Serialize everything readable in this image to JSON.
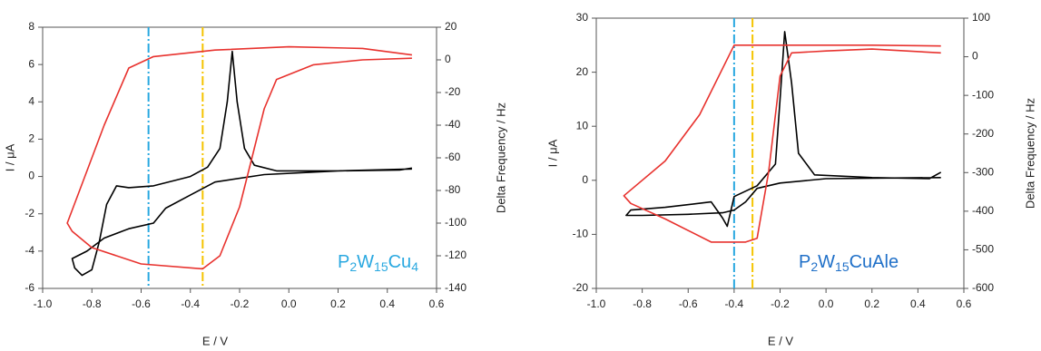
{
  "chart_data": [
    {
      "type": "line",
      "xlabel": "E / V",
      "ylabel": "I / μA",
      "y2label": "Delta Frequency / Hz",
      "annotation": [
        "P",
        "2",
        "W",
        "15",
        "Cu",
        "4"
      ],
      "annotation_color": "#29a8e0",
      "xlim": [
        -1.0,
        0.6
      ],
      "xticks": [
        {
          "value": -1.0,
          "label": "-1.0"
        },
        -0.8,
        -0.6,
        -0.4,
        -0.2,
        {
          "value": 0,
          "label": "0.0"
        },
        0.2,
        0.4,
        0.6
      ],
      "ylim": [
        -6,
        8
      ],
      "yticks": [
        -6,
        -4,
        -2,
        0,
        2,
        4,
        6,
        8
      ],
      "y2lim": [
        -140,
        20
      ],
      "y2ticks": [
        -140,
        -120,
        -100,
        -80,
        -60,
        -40,
        -20,
        0,
        20
      ],
      "vlines": [
        {
          "x": -0.57,
          "color": "#29a8e0"
        },
        {
          "x": -0.35,
          "color": "#f5c400"
        }
      ],
      "series": [
        {
          "color": "#000000",
          "axis": "y",
          "x": [
            0.5,
            0.2,
            -0.1,
            -0.3,
            -0.4,
            -0.5,
            -0.55,
            -0.65,
            -0.75,
            -0.82,
            -0.88,
            -0.87,
            -0.84,
            -0.8,
            -0.77,
            -0.74,
            -0.7,
            -0.65,
            -0.55,
            -0.4,
            -0.33,
            -0.28,
            -0.25,
            -0.23,
            -0.21,
            -0.18,
            -0.14,
            -0.05,
            0.2,
            0.45,
            0.5
          ],
          "values": [
            0.4,
            0.3,
            0.1,
            -0.3,
            -1.0,
            -1.7,
            -2.5,
            -2.8,
            -3.3,
            -4.0,
            -4.4,
            -4.9,
            -5.3,
            -5.0,
            -3.5,
            -1.5,
            -0.5,
            -0.6,
            -0.5,
            0.0,
            0.5,
            1.5,
            4.0,
            6.7,
            4.0,
            1.5,
            0.6,
            0.3,
            0.3,
            0.35,
            0.45
          ]
        },
        {
          "color": "#e8322e",
          "axis": "y2",
          "x": [
            0.5,
            0.3,
            0.0,
            -0.3,
            -0.55,
            -0.65,
            -0.75,
            -0.85,
            -0.9,
            -0.88,
            -0.8,
            -0.6,
            -0.35,
            -0.28,
            -0.2,
            -0.15,
            -0.1,
            -0.05,
            0.1,
            0.3,
            0.5
          ],
          "values": [
            3,
            7,
            8,
            6,
            2,
            -5,
            -40,
            -80,
            -100,
            -105,
            -115,
            -125,
            -128,
            -120,
            -90,
            -60,
            -30,
            -12,
            -3,
            0,
            1
          ]
        }
      ]
    },
    {
      "type": "line",
      "xlabel": "E / V",
      "ylabel": "I / μA",
      "y2label": "Delta Frequency / Hz",
      "annotation": [
        "P",
        "2",
        "W",
        "15",
        "CuAle"
      ],
      "annotation_color": "#2070c8",
      "xlim": [
        -1.0,
        0.6
      ],
      "xticks": [
        {
          "value": -1.0,
          "label": "-1.0"
        },
        -0.8,
        -0.6,
        -0.4,
        -0.2,
        {
          "value": 0,
          "label": "0.0"
        },
        0.2,
        0.4,
        0.6
      ],
      "ylim": [
        -20,
        30
      ],
      "yticks": [
        -20,
        -10,
        0,
        10,
        20,
        30
      ],
      "y2lim": [
        -600,
        100
      ],
      "y2ticks": [
        -600,
        -500,
        -400,
        -300,
        -200,
        -100,
        0,
        100
      ],
      "vlines": [
        {
          "x": -0.4,
          "color": "#29a8e0"
        },
        {
          "x": -0.32,
          "color": "#f5c400"
        }
      ],
      "series": [
        {
          "color": "#000000",
          "axis": "y",
          "x": [
            0.5,
            0.0,
            -0.2,
            -0.3,
            -0.35,
            -0.4,
            -0.45,
            -0.6,
            -0.8,
            -0.87,
            -0.85,
            -0.7,
            -0.5,
            -0.45,
            -0.43,
            -0.4,
            -0.3,
            -0.22,
            -0.2,
            -0.18,
            -0.15,
            -0.12,
            -0.05,
            0.2,
            0.45,
            0.5
          ],
          "values": [
            0.5,
            0.3,
            -0.5,
            -1.5,
            -4,
            -5.5,
            -6,
            -6.3,
            -6.5,
            -6.5,
            -5.5,
            -5,
            -4,
            -7,
            -8.5,
            -3,
            -1,
            3,
            15,
            27.5,
            18,
            5,
            1,
            0.5,
            0.3,
            1.5
          ]
        },
        {
          "color": "#e8322e",
          "axis": "y2",
          "x": [
            0.5,
            0.2,
            -0.4,
            -0.55,
            -0.7,
            -0.88,
            -0.85,
            -0.7,
            -0.5,
            -0.35,
            -0.3,
            -0.25,
            -0.2,
            -0.15,
            0.0,
            0.2,
            0.5
          ],
          "values": [
            28,
            30,
            30,
            -150,
            -270,
            -360,
            -380,
            -420,
            -480,
            -480,
            -470,
            -300,
            -50,
            10,
            15,
            20,
            10
          ]
        }
      ]
    }
  ]
}
